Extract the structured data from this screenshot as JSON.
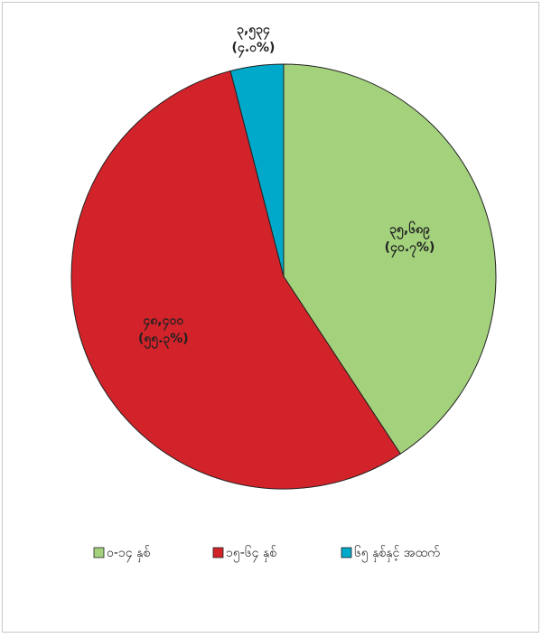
{
  "chart_data": {
    "type": "pie",
    "categories": [
      "၀-၁၄ နှစ်",
      "၁၅-၆၄ နှစ်",
      "၆၅ နှစ်နှင့် အထက်"
    ],
    "values": [
      35689,
      48400,
      3534
    ],
    "value_labels": [
      "၃၅,၆၈၉",
      "၄၈,၄၀၀",
      "၃,၅၃၄"
    ],
    "percent_labels": [
      "(၄၀.၇%)",
      "(၅၅.၃%)",
      "(၄.၀%)"
    ],
    "colors": [
      "#a3d17c",
      "#d2232a",
      "#00a9c9"
    ],
    "legend": "bottom"
  }
}
